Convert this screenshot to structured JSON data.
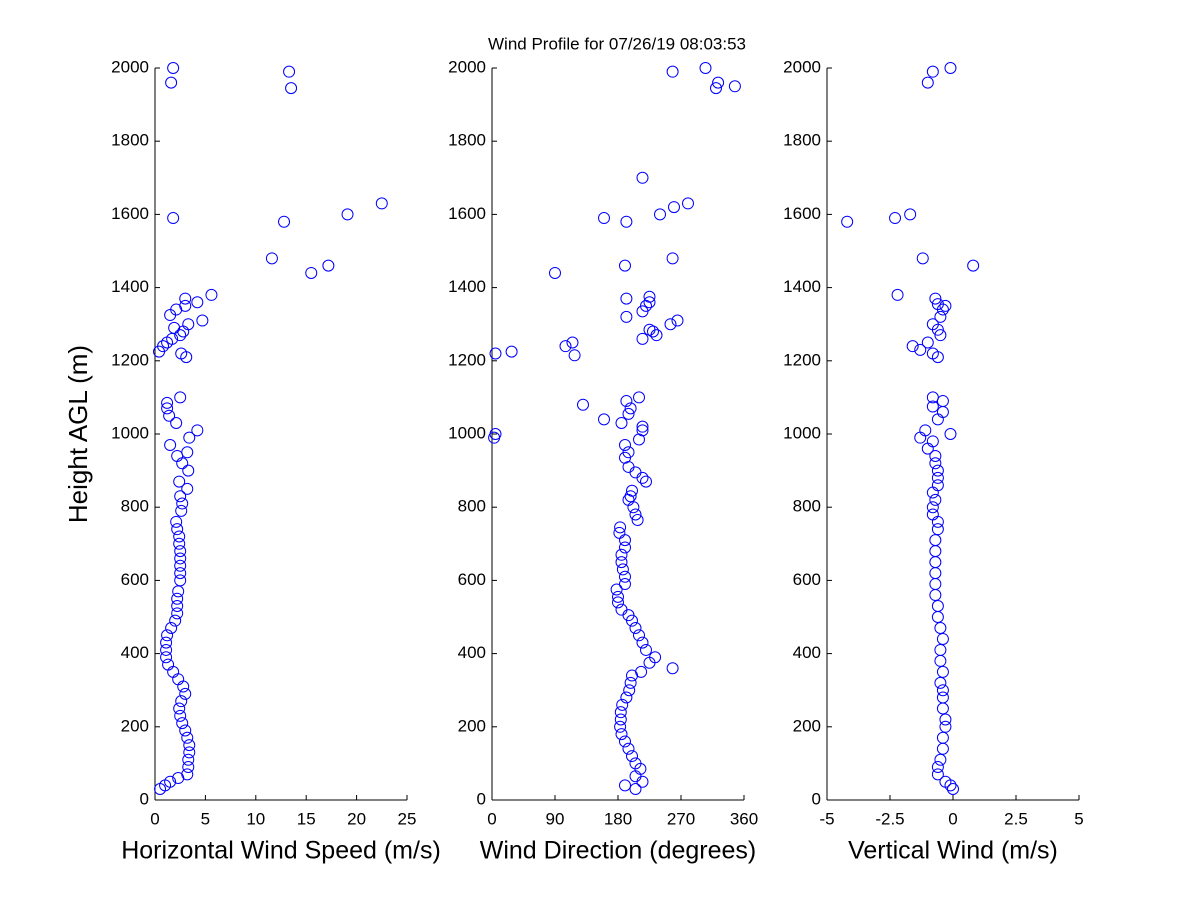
{
  "chart_data": [
    {
      "type": "scatter",
      "title": "Wind Profile for  07/26/19 08:03:53",
      "xlabel": "Horizontal Wind Speed (m/s)",
      "ylabel": "Height AGL (m)",
      "color": "#0000ff",
      "xlim": [
        0,
        25
      ],
      "ylim": [
        0,
        2000
      ],
      "xticks": [
        0,
        5,
        10,
        15,
        20,
        25
      ],
      "yticks": [
        0,
        200,
        400,
        600,
        800,
        1000,
        1200,
        1400,
        1600,
        1800,
        2000
      ],
      "x": [
        0.5,
        1,
        1.5,
        2.3,
        3.2,
        3.3,
        3.3,
        3.4,
        3.4,
        3.2,
        3,
        2.7,
        2.5,
        2.4,
        2.6,
        3,
        2.8,
        2.3,
        1.8,
        1.3,
        1.1,
        1.1,
        1.1,
        1.2,
        1.6,
        2,
        2.2,
        2.2,
        2.2,
        2.3,
        2.5,
        2.5,
        2.5,
        2.5,
        2.5,
        2.4,
        2.4,
        2.2,
        2.1,
        2.6,
        2.7,
        2.5,
        3.2,
        2.4,
        3.3,
        2.7,
        2.2,
        3.2,
        1.5,
        3.4,
        4.2,
        2.1,
        1.4,
        1.2,
        1.2,
        2.5,
        0.4,
        0.8,
        1.2,
        1.7,
        2.5,
        3.1,
        2.6,
        2.8,
        1.9,
        3.3,
        4.7,
        1.5,
        2.1,
        3,
        3,
        4.2,
        5.6,
        11.6,
        15.5,
        17.2,
        1.8,
        12.8,
        19.1,
        22.5,
        13.3,
        13.5,
        1.6,
        1.8
      ],
      "y": [
        30,
        40,
        50,
        60,
        70,
        90,
        110,
        130,
        150,
        170,
        190,
        210,
        230,
        250,
        270,
        290,
        310,
        330,
        350,
        370,
        390,
        410,
        430,
        450,
        470,
        490,
        510,
        530,
        550,
        570,
        600,
        620,
        640,
        660,
        680,
        700,
        720,
        740,
        760,
        790,
        810,
        830,
        850,
        870,
        900,
        920,
        940,
        950,
        970,
        990,
        1010,
        1030,
        1050,
        1070,
        1085,
        1100,
        1225,
        1240,
        1250,
        1260,
        1270,
        1210,
        1220,
        1280,
        1290,
        1300,
        1310,
        1325,
        1340,
        1350,
        1370,
        1360,
        1380,
        1480,
        1440,
        1460,
        1590,
        1580,
        1600,
        1630,
        1990,
        1945,
        1960,
        2000
      ]
    },
    {
      "type": "scatter",
      "xlabel": "Wind Direction (degrees)",
      "color": "#0000ff",
      "xlim": [
        0,
        360
      ],
      "ylim": [
        0,
        2000
      ],
      "xticks": [
        0,
        90,
        180,
        270,
        360
      ],
      "yticks": [
        0,
        200,
        400,
        600,
        800,
        1000,
        1200,
        1400,
        1600,
        1800,
        2000
      ],
      "x": [
        205,
        190,
        215,
        205,
        212,
        205,
        200,
        195,
        190,
        185,
        183,
        184,
        184,
        186,
        192,
        196,
        198,
        200,
        213,
        258,
        225,
        233,
        220,
        215,
        210,
        205,
        200,
        195,
        185,
        180,
        180,
        178,
        190,
        190,
        187,
        185,
        185,
        190,
        190,
        182,
        183,
        208,
        205,
        202,
        195,
        198,
        200,
        220,
        215,
        205,
        195,
        190,
        195,
        190,
        210,
        215,
        215,
        185,
        160,
        195,
        198,
        192,
        210,
        130,
        3,
        5,
        5,
        28,
        105,
        115,
        118,
        215,
        235,
        230,
        255,
        265,
        225,
        192,
        215,
        220,
        225,
        225,
        192,
        90,
        190,
        258,
        160,
        192,
        240,
        260,
        280,
        215,
        258,
        305,
        320,
        323,
        347
      ],
      "y": [
        30,
        40,
        50,
        65,
        85,
        100,
        120,
        140,
        160,
        180,
        200,
        220,
        240,
        260,
        280,
        300,
        320,
        340,
        350,
        360,
        375,
        390,
        410,
        430,
        450,
        470,
        490,
        505,
        520,
        540,
        555,
        575,
        590,
        610,
        630,
        650,
        670,
        690,
        710,
        730,
        745,
        765,
        780,
        800,
        820,
        830,
        845,
        870,
        880,
        895,
        910,
        935,
        950,
        970,
        985,
        1010,
        1020,
        1030,
        1040,
        1055,
        1070,
        1090,
        1100,
        1080,
        990,
        1000,
        1220,
        1225,
        1240,
        1250,
        1215,
        1260,
        1270,
        1280,
        1300,
        1310,
        1285,
        1320,
        1335,
        1350,
        1360,
        1375,
        1370,
        1440,
        1460,
        1480,
        1590,
        1580,
        1600,
        1620,
        1630,
        1700,
        1990,
        2000,
        1945,
        1960,
        1950
      ]
    },
    {
      "type": "scatter",
      "xlabel": "Vertical Wind (m/s)",
      "color": "#0000ff",
      "xlim": [
        -5,
        5
      ],
      "ylim": [
        0,
        2000
      ],
      "xticks": [
        -5,
        -2.5,
        0,
        2.5,
        5
      ],
      "yticks": [
        0,
        200,
        400,
        600,
        800,
        1000,
        1200,
        1400,
        1600,
        1800,
        2000
      ],
      "x": [
        0,
        -0.1,
        -0.3,
        -0.6,
        -0.6,
        -0.5,
        -0.4,
        -0.4,
        -0.3,
        -0.3,
        -0.4,
        -0.4,
        -0.4,
        -0.5,
        -0.4,
        -0.5,
        -0.5,
        -0.4,
        -0.5,
        -0.6,
        -0.6,
        -0.7,
        -0.7,
        -0.7,
        -0.7,
        -0.7,
        -0.7,
        -0.6,
        -0.6,
        -0.8,
        -0.8,
        -0.7,
        -0.8,
        -0.6,
        -0.6,
        -0.6,
        -0.7,
        -0.7,
        -1,
        -0.8,
        -1.3,
        -1.1,
        -0.1,
        -0.6,
        -0.4,
        -0.8,
        -0.4,
        -0.8,
        -0.6,
        -0.8,
        -1.6,
        -1.3,
        -1,
        -0.5,
        -0.6,
        -0.8,
        -0.5,
        -0.4,
        -0.3,
        -0.6,
        -0.7,
        -2.2,
        -1.2,
        0.8,
        -4.2,
        -2.3,
        -1.7,
        -1,
        -0.8,
        -0.1
      ],
      "y": [
        30,
        40,
        50,
        70,
        90,
        110,
        140,
        170,
        200,
        220,
        250,
        280,
        300,
        320,
        350,
        380,
        410,
        440,
        470,
        500,
        530,
        560,
        590,
        620,
        650,
        680,
        710,
        740,
        760,
        780,
        800,
        820,
        840,
        860,
        880,
        900,
        920,
        940,
        960,
        980,
        990,
        1010,
        1000,
        1040,
        1060,
        1075,
        1090,
        1100,
        1210,
        1220,
        1240,
        1230,
        1250,
        1270,
        1285,
        1300,
        1320,
        1340,
        1350,
        1355,
        1370,
        1380,
        1480,
        1460,
        1580,
        1590,
        1600,
        1960,
        1990,
        2000
      ]
    }
  ]
}
